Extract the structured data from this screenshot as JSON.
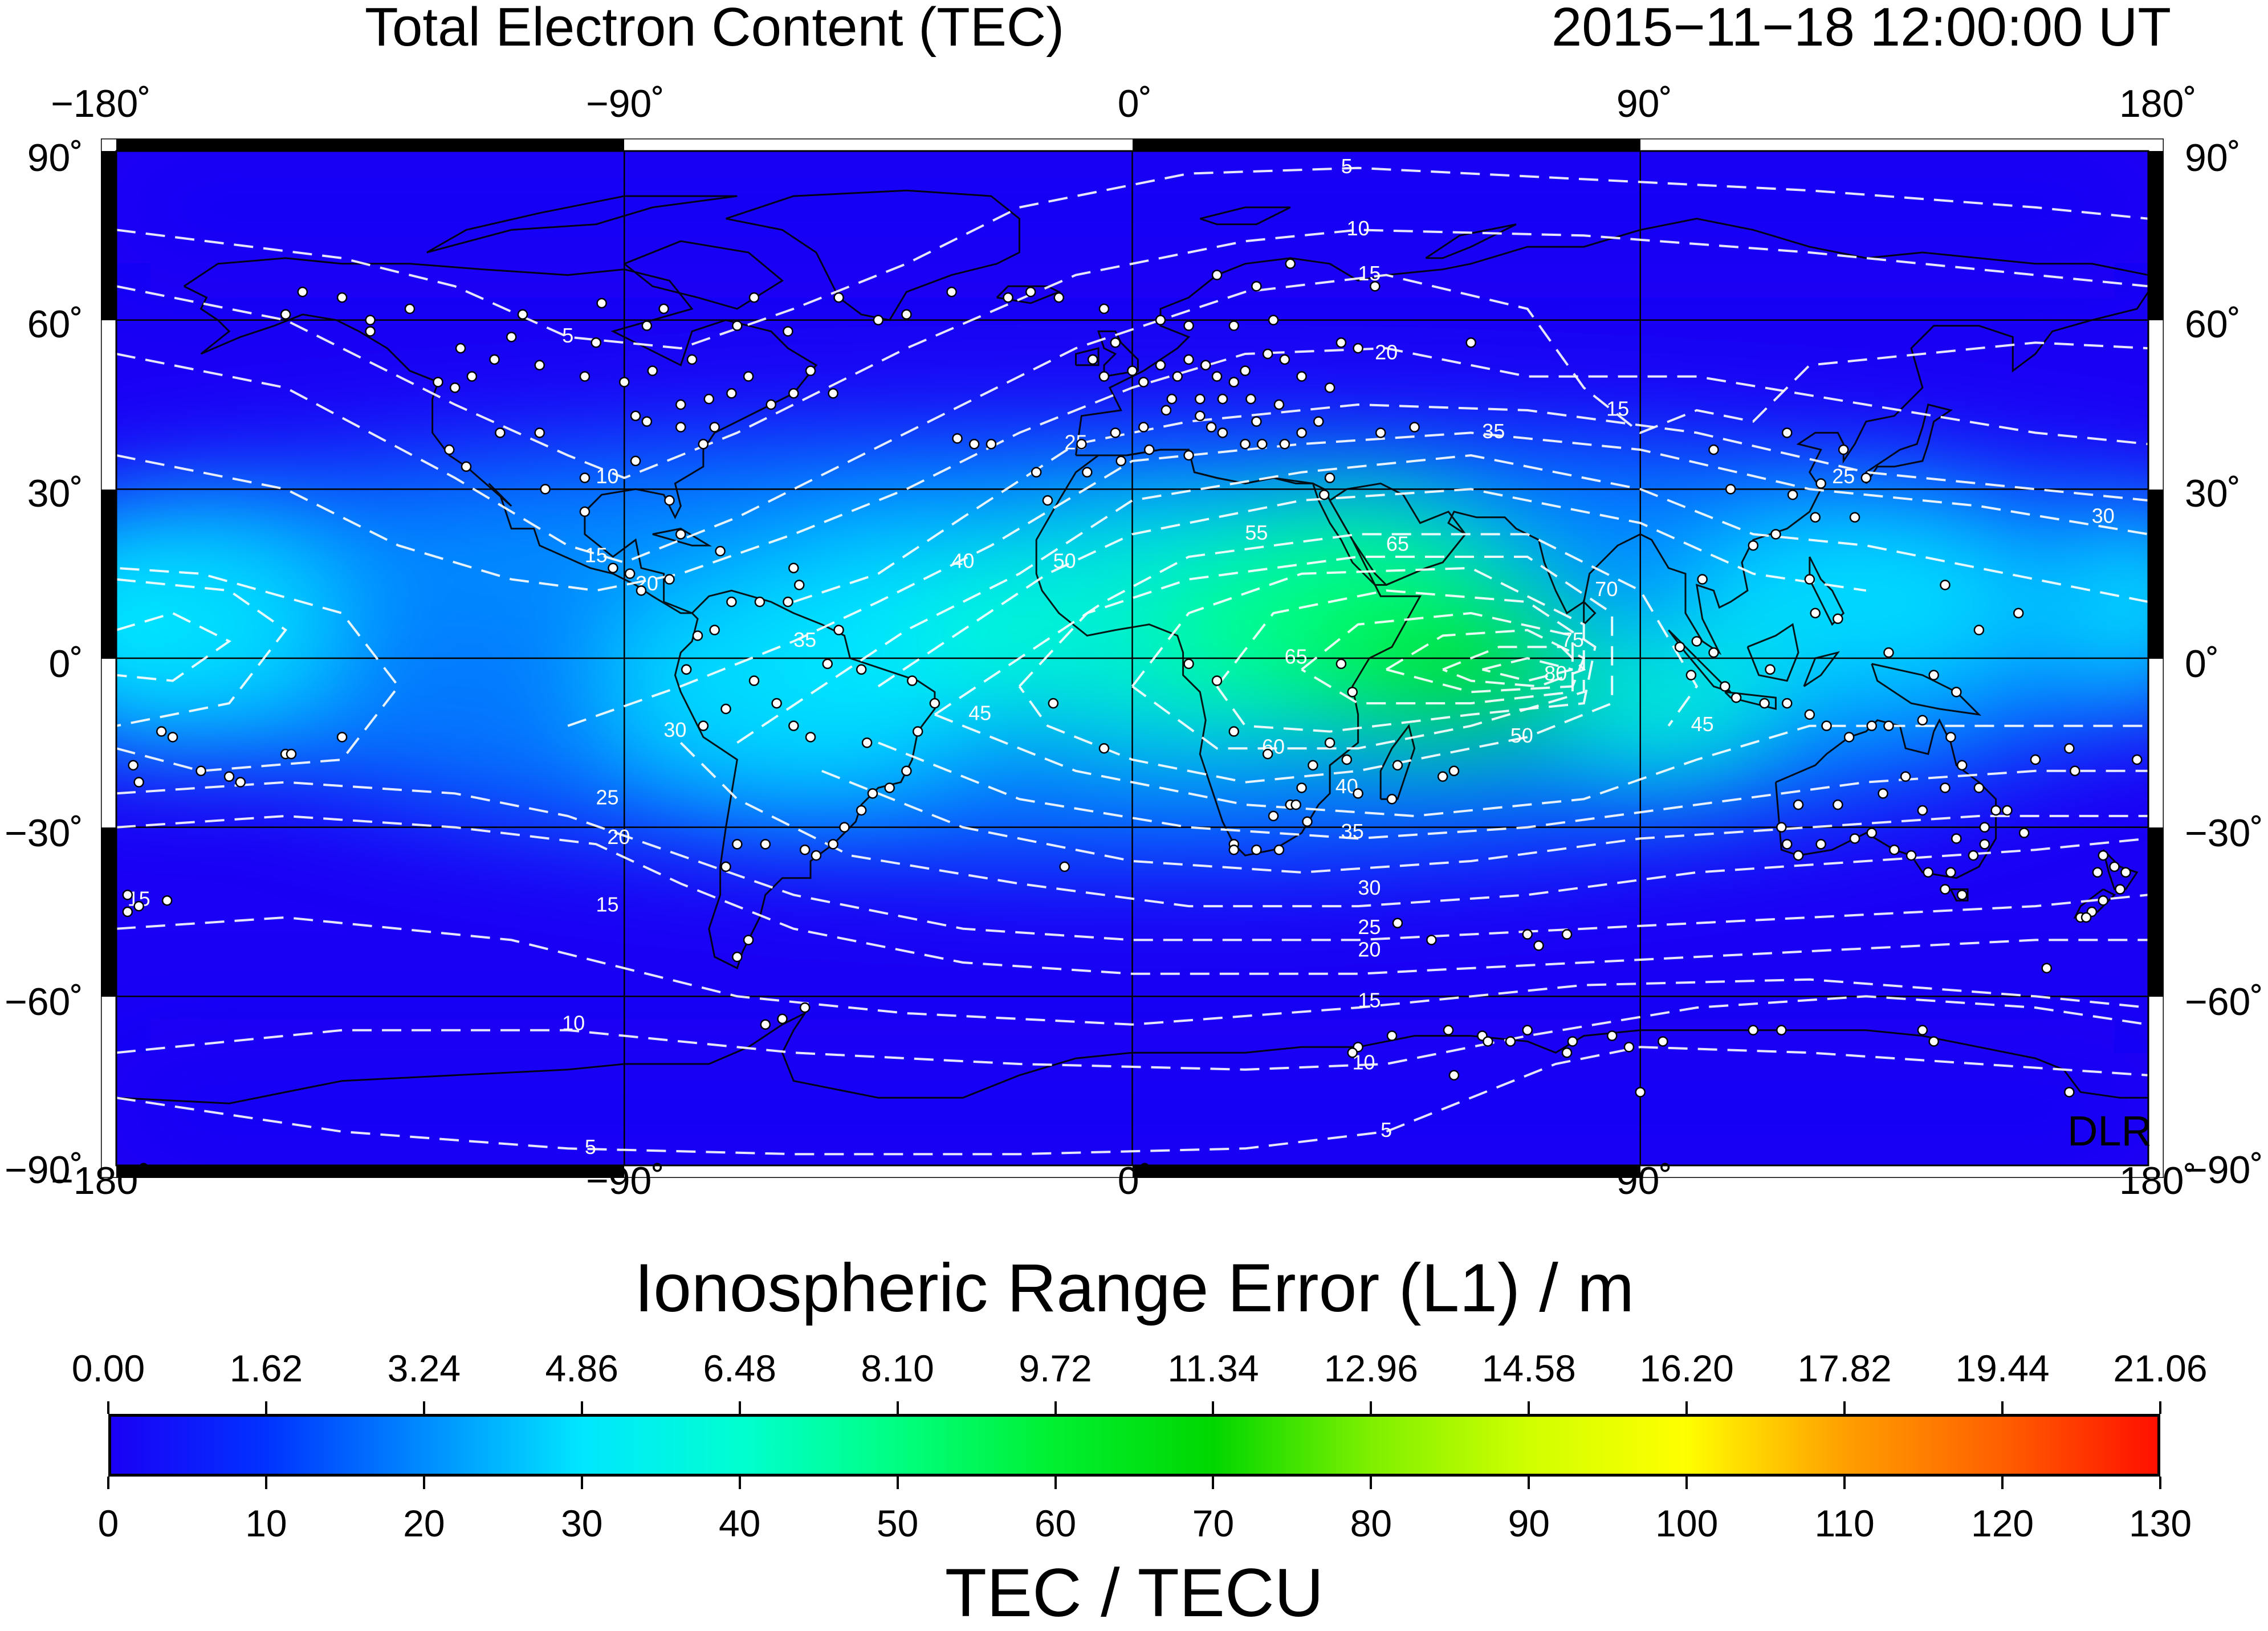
{
  "header": {
    "title": "Total Electron Content (TEC)",
    "timestamp": "2015−11−18  12:00:00 UT"
  },
  "map": {
    "lon_labels": [
      "−180˚",
      "−90˚",
      "0˚",
      "90˚",
      "180˚"
    ],
    "lat_labels": [
      "90˚",
      "60˚",
      "30˚",
      "0˚",
      "−30˚",
      "−60˚",
      "−90˚"
    ],
    "lon_ticks": [
      -180,
      -90,
      0,
      90,
      180
    ],
    "lat_ticks": [
      90,
      60,
      30,
      0,
      -30,
      -60,
      -90
    ],
    "credit": "DLR",
    "tec_field_centers": [
      {
        "name": "equatorial-africa-peak",
        "lon": 65,
        "lat": -3,
        "tec": 82
      },
      {
        "name": "atlantic-crest",
        "lon": 5,
        "lat": 5,
        "tec": 55
      },
      {
        "name": "west-pacific",
        "lon": -170,
        "lat": 0,
        "tec": 35
      }
    ],
    "contours": [
      {
        "level": "5",
        "label_lon": 38,
        "label_lat": 87
      },
      {
        "level": "10",
        "label_lon": 40,
        "label_lat": 76
      },
      {
        "level": "15",
        "label_lon": 42,
        "label_lat": 68
      },
      {
        "level": "20",
        "label_lon": 45,
        "label_lat": 54
      },
      {
        "level": "25",
        "label_lon": -10,
        "label_lat": 38
      },
      {
        "level": "30",
        "label_lon": 172,
        "label_lat": 25
      },
      {
        "level": "35",
        "label_lon": 64,
        "label_lat": 40
      },
      {
        "level": "40",
        "label_lon": -30,
        "label_lat": 17
      },
      {
        "level": "45",
        "label_lon": 101,
        "label_lat": -12
      },
      {
        "level": "50",
        "label_lon": -12,
        "label_lat": 17
      },
      {
        "level": "55",
        "label_lon": 22,
        "label_lat": 22
      },
      {
        "level": "60",
        "label_lon": 25,
        "label_lat": -16
      },
      {
        "level": "65",
        "label_lon": 47,
        "label_lat": 20
      },
      {
        "level": "70",
        "label_lon": 84,
        "label_lat": 12
      },
      {
        "level": "75",
        "label_lon": 78,
        "label_lat": 3
      },
      {
        "level": "80",
        "label_lon": 75,
        "label_lat": -3
      },
      {
        "level": "15",
        "label_lon": -176,
        "label_lat": -43
      },
      {
        "level": "10",
        "label_lon": -99,
        "label_lat": -65
      },
      {
        "level": "5",
        "label_lon": -96,
        "label_lat": -87
      },
      {
        "level": "5",
        "label_lon": 45,
        "label_lat": -84
      },
      {
        "level": "10",
        "label_lon": 41,
        "label_lat": -72
      },
      {
        "level": "15",
        "label_lon": 42,
        "label_lat": -61
      },
      {
        "level": "20",
        "label_lon": 42,
        "label_lat": -52
      },
      {
        "level": "25",
        "label_lon": 42,
        "label_lat": -48
      },
      {
        "level": "30",
        "label_lon": 42,
        "label_lat": -41
      },
      {
        "level": "35",
        "label_lon": 39,
        "label_lat": -31
      },
      {
        "level": "40",
        "label_lon": 38,
        "label_lat": -23
      },
      {
        "level": "50",
        "label_lon": 69,
        "label_lat": -14
      },
      {
        "level": "25",
        "label_lon": 126,
        "label_lat": 32
      },
      {
        "level": "15",
        "label_lon": 86,
        "label_lat": 44
      },
      {
        "level": "15",
        "label_lon": -95,
        "label_lat": 18
      },
      {
        "level": "20",
        "label_lon": -86,
        "label_lat": 13
      },
      {
        "level": "10",
        "label_lon": -93,
        "label_lat": 32
      },
      {
        "level": "5",
        "label_lon": -100,
        "label_lat": 57
      },
      {
        "level": "30",
        "label_lon": -81,
        "label_lat": -13
      },
      {
        "level": "25",
        "label_lon": -93,
        "label_lat": -25
      },
      {
        "level": "20",
        "label_lon": -91,
        "label_lat": -32
      },
      {
        "level": "15",
        "label_lon": -93,
        "label_lat": -44
      },
      {
        "level": "35",
        "label_lon": -58,
        "label_lat": 3
      },
      {
        "level": "45",
        "label_lon": -27,
        "label_lat": -10
      },
      {
        "level": "65",
        "label_lon": 29,
        "label_lat": 0
      }
    ],
    "stations": [
      [
        -147,
        65
      ],
      [
        -150,
        61
      ],
      [
        -135,
        58
      ],
      [
        -123,
        49
      ],
      [
        -120,
        48
      ],
      [
        -117,
        50
      ],
      [
        -113,
        53
      ],
      [
        -105,
        52
      ],
      [
        -97,
        50
      ],
      [
        -90,
        49
      ],
      [
        -80,
        45
      ],
      [
        -75,
        46
      ],
      [
        -71,
        47
      ],
      [
        -64,
        45
      ],
      [
        -60,
        47
      ],
      [
        -53,
        47
      ],
      [
        -68,
        50
      ],
      [
        -78,
        53
      ],
      [
        -95,
        56
      ],
      [
        -110,
        57
      ],
      [
        -119,
        55
      ],
      [
        -128,
        62
      ],
      [
        -135,
        60
      ],
      [
        -140,
        64
      ],
      [
        -94,
        63
      ],
      [
        -83,
        62
      ],
      [
        -70,
        59
      ],
      [
        -85,
        51
      ],
      [
        -80,
        41
      ],
      [
        -86,
        42
      ],
      [
        -88,
        35
      ],
      [
        -97,
        32
      ],
      [
        -105,
        40
      ],
      [
        -112,
        40
      ],
      [
        -121,
        37
      ],
      [
        -118,
        34
      ],
      [
        -104,
        30
      ],
      [
        -97,
        26
      ],
      [
        -82,
        28
      ],
      [
        -76,
        38
      ],
      [
        -74,
        41
      ],
      [
        -86,
        59
      ],
      [
        -67,
        64
      ],
      [
        -61,
        58
      ],
      [
        -108,
        61
      ],
      [
        -57,
        51
      ],
      [
        -88,
        43
      ],
      [
        -5,
        50
      ],
      [
        0,
        51
      ],
      [
        2,
        49
      ],
      [
        5,
        52
      ],
      [
        8,
        50
      ],
      [
        10,
        53
      ],
      [
        13,
        52
      ],
      [
        15,
        50
      ],
      [
        18,
        49
      ],
      [
        20,
        51
      ],
      [
        24,
        54
      ],
      [
        27,
        53
      ],
      [
        30,
        50
      ],
      [
        35,
        48
      ],
      [
        40,
        55
      ],
      [
        37,
        56
      ],
      [
        25,
        60
      ],
      [
        18,
        59
      ],
      [
        10,
        59
      ],
      [
        5,
        60
      ],
      [
        -3,
        56
      ],
      [
        -7,
        53
      ],
      [
        -9,
        38
      ],
      [
        -3,
        40
      ],
      [
        2,
        41
      ],
      [
        6,
        44
      ],
      [
        12,
        43
      ],
      [
        14,
        41
      ],
      [
        16,
        40
      ],
      [
        20,
        38
      ],
      [
        23,
        38
      ],
      [
        27,
        38
      ],
      [
        30,
        40
      ],
      [
        33,
        42
      ],
      [
        12,
        46
      ],
      [
        7,
        46
      ],
      [
        16,
        46
      ],
      [
        21,
        46
      ],
      [
        26,
        45
      ],
      [
        22,
        42
      ],
      [
        -15,
        28
      ],
      [
        -17,
        33
      ],
      [
        -25,
        38
      ],
      [
        -28,
        38
      ],
      [
        -31,
        39
      ],
      [
        -22,
        64
      ],
      [
        -18,
        65
      ],
      [
        -13,
        64
      ],
      [
        -5,
        62
      ],
      [
        -40,
        61
      ],
      [
        -45,
        60
      ],
      [
        -52,
        64
      ],
      [
        -32,
        65
      ],
      [
        28,
        70
      ],
      [
        15,
        68
      ],
      [
        22,
        66
      ],
      [
        43,
        66
      ],
      [
        60,
        56
      ],
      [
        50,
        41
      ],
      [
        44,
        40
      ],
      [
        35,
        32
      ],
      [
        34,
        29
      ],
      [
        -8,
        33
      ],
      [
        -2,
        35
      ],
      [
        10,
        36
      ],
      [
        3,
        37
      ],
      [
        -54,
        -1
      ],
      [
        -48,
        -2
      ],
      [
        -39,
        -4
      ],
      [
        -35,
        -8
      ],
      [
        -38,
        -13
      ],
      [
        -40,
        -20
      ],
      [
        -43,
        -23
      ],
      [
        -46,
        -24
      ],
      [
        -48,
        -27
      ],
      [
        -51,
        -30
      ],
      [
        -53,
        -33
      ],
      [
        -56,
        -35
      ],
      [
        -58,
        -34
      ],
      [
        -65,
        -33
      ],
      [
        -70,
        -33
      ],
      [
        -72,
        -37
      ],
      [
        -68,
        -50
      ],
      [
        -70,
        -53
      ],
      [
        -47,
        -15
      ],
      [
        -57,
        -14
      ],
      [
        -60,
        -12
      ],
      [
        -63,
        -8
      ],
      [
        -67,
        -4
      ],
      [
        -72,
        -9
      ],
      [
        -76,
        -12
      ],
      [
        -79,
        -2
      ],
      [
        -77,
        4
      ],
      [
        -74,
        5
      ],
      [
        -71,
        10
      ],
      [
        -66,
        10
      ],
      [
        -61,
        10
      ],
      [
        -59,
        13
      ],
      [
        -60,
        16
      ],
      [
        -52,
        5
      ],
      [
        -73,
        19
      ],
      [
        -80,
        22
      ],
      [
        -82,
        14
      ],
      [
        -87,
        12
      ],
      [
        -89,
        15
      ],
      [
        -92,
        16
      ],
      [
        28,
        -26
      ],
      [
        25,
        -28
      ],
      [
        18,
        -33
      ],
      [
        22,
        -34
      ],
      [
        26,
        -34
      ],
      [
        31,
        -29
      ],
      [
        30,
        -23
      ],
      [
        32,
        -19
      ],
      [
        35,
        -15
      ],
      [
        37,
        -1
      ],
      [
        39,
        -6
      ],
      [
        47,
        -19
      ],
      [
        55,
        -21
      ],
      [
        57,
        -20
      ],
      [
        46,
        -25
      ],
      [
        38,
        -18
      ],
      [
        40,
        -24
      ],
      [
        -14,
        -8
      ],
      [
        -5,
        -16
      ],
      [
        -12,
        -37
      ],
      [
        10,
        -1
      ],
      [
        15,
        -4
      ],
      [
        18,
        -13
      ],
      [
        24,
        -17
      ],
      [
        29,
        -26
      ],
      [
        18,
        -34
      ],
      [
        70,
        -49
      ],
      [
        72,
        -51
      ],
      [
        77,
        -49
      ],
      [
        47,
        -47
      ],
      [
        53,
        -50
      ],
      [
        122,
        31
      ],
      [
        121,
        25
      ],
      [
        116,
        40
      ],
      [
        114,
        22
      ],
      [
        117,
        29
      ],
      [
        110,
        20
      ],
      [
        106,
        30
      ],
      [
        103,
        37
      ],
      [
        126,
        37
      ],
      [
        130,
        32
      ],
      [
        128,
        25
      ],
      [
        120,
        14
      ],
      [
        121,
        8
      ],
      [
        125,
        7
      ],
      [
        101,
        14
      ],
      [
        100,
        3
      ],
      [
        103,
        1
      ],
      [
        113,
        -2
      ],
      [
        107,
        -7
      ],
      [
        112,
        -8
      ],
      [
        116,
        -8
      ],
      [
        120,
        -10
      ],
      [
        123,
        -12
      ],
      [
        127,
        -14
      ],
      [
        131,
        -12
      ],
      [
        134,
        -12
      ],
      [
        140,
        -11
      ],
      [
        145,
        -14
      ],
      [
        147,
        -19
      ],
      [
        150,
        -23
      ],
      [
        153,
        -27
      ],
      [
        151,
        -30
      ],
      [
        151,
        -33
      ],
      [
        149,
        -35
      ],
      [
        145,
        -38
      ],
      [
        141,
        -38
      ],
      [
        138,
        -35
      ],
      [
        135,
        -34
      ],
      [
        131,
        -31
      ],
      [
        125,
        -26
      ],
      [
        118,
        -26
      ],
      [
        115,
        -30
      ],
      [
        116,
        -33
      ],
      [
        118,
        -35
      ],
      [
        122,
        -33
      ],
      [
        128,
        -32
      ],
      [
        133,
        -24
      ],
      [
        137,
        -21
      ],
      [
        144,
        -23
      ],
      [
        140,
        -27
      ],
      [
        146,
        -32
      ],
      [
        147,
        -42
      ],
      [
        144,
        -41
      ],
      [
        167,
        -20
      ],
      [
        166,
        -16
      ],
      [
        172,
        -35
      ],
      [
        174,
        -37
      ],
      [
        176,
        -38
      ],
      [
        175,
        -41
      ],
      [
        172,
        -43
      ],
      [
        170,
        -45
      ],
      [
        168,
        -46
      ],
      [
        178,
        -18
      ],
      [
        169,
        -46
      ],
      [
        171,
        -38
      ],
      [
        158,
        -31
      ],
      [
        155,
        -27
      ],
      [
        160,
        -18
      ],
      [
        162,
        -55
      ],
      [
        142,
        -3
      ],
      [
        146,
        -6
      ],
      [
        134,
        1
      ],
      [
        150,
        5
      ],
      [
        157,
        8
      ],
      [
        144,
        13
      ],
      [
        105,
        -5
      ],
      [
        99,
        -3
      ],
      [
        97,
        2
      ],
      [
        -177,
        -19
      ],
      [
        -170,
        -14
      ],
      [
        -172,
        -13
      ],
      [
        -160,
        -21
      ],
      [
        -150,
        -17
      ],
      [
        -140,
        -14
      ],
      [
        -176,
        -22
      ],
      [
        -165,
        -20
      ],
      [
        -158,
        -22
      ],
      [
        -149,
        -17
      ],
      [
        -176,
        -44
      ],
      [
        -178,
        -42
      ],
      [
        -171,
        -43
      ],
      [
        -178,
        -45
      ],
      [
        -62,
        -64
      ],
      [
        -58,
        -62
      ],
      [
        40,
        -69
      ],
      [
        46,
        -67
      ],
      [
        62,
        -67
      ],
      [
        78,
        -68
      ],
      [
        85,
        -67
      ],
      [
        110,
        -66
      ],
      [
        115,
        -66
      ],
      [
        140,
        -66
      ],
      [
        142,
        -68
      ],
      [
        77,
        -70
      ],
      [
        166,
        -77
      ],
      [
        39,
        -70
      ],
      [
        -65,
        -65
      ],
      [
        56,
        -66
      ],
      [
        70,
        -66
      ],
      [
        88,
        -69
      ],
      [
        90,
        -77
      ],
      [
        94,
        -68
      ],
      [
        57,
        -74
      ],
      [
        67,
        -68
      ],
      [
        63,
        -68
      ]
    ]
  },
  "range_axis": {
    "label": "Ionospheric Range Error (L1) / m",
    "ticks": [
      "0.00",
      "1.62",
      "3.24",
      "4.86",
      "6.48",
      "8.10",
      "9.72",
      "11.34",
      "12.96",
      "14.58",
      "16.20",
      "17.82",
      "19.44",
      "21.06"
    ]
  },
  "tec_axis": {
    "label": "TEC / TECU",
    "ticks": [
      "0",
      "10",
      "20",
      "30",
      "40",
      "50",
      "60",
      "70",
      "80",
      "90",
      "100",
      "110",
      "120",
      "130"
    ],
    "min": 0,
    "max": 130
  },
  "colormap": [
    {
      "tec": 0,
      "color": "#1a00f5"
    },
    {
      "tec": 10,
      "color": "#0033ff"
    },
    {
      "tec": 20,
      "color": "#008dff"
    },
    {
      "tec": 30,
      "color": "#00e7ff"
    },
    {
      "tec": 40,
      "color": "#00ffd0"
    },
    {
      "tec": 50,
      "color": "#00ff80"
    },
    {
      "tec": 60,
      "color": "#00f030"
    },
    {
      "tec": 70,
      "color": "#00d700"
    },
    {
      "tec": 80,
      "color": "#7ef000"
    },
    {
      "tec": 90,
      "color": "#d0ff00"
    },
    {
      "tec": 100,
      "color": "#ffff00"
    },
    {
      "tec": 110,
      "color": "#ffa000"
    },
    {
      "tec": 120,
      "color": "#ff6000"
    },
    {
      "tec": 130,
      "color": "#ff1000"
    }
  ]
}
